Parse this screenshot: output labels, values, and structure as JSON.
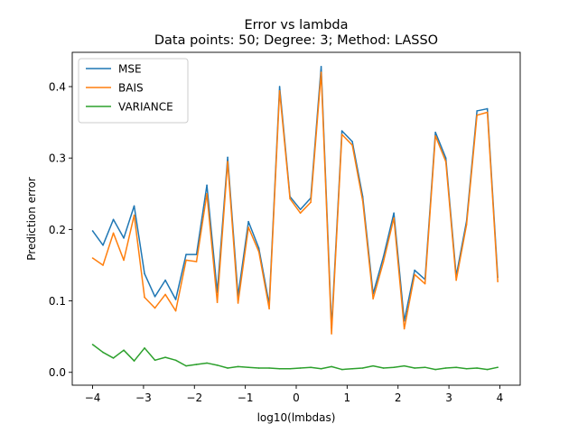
{
  "chart_data": {
    "type": "line",
    "title": "Error vs lambda",
    "subtitle": "Data points: 50; Degree: 3; Method: LASSO",
    "xlabel": "log10(lmbdas)",
    "ylabel": "Prediction error",
    "xlim": [
      -4.4,
      4.4
    ],
    "ylim": [
      -0.018,
      0.448
    ],
    "xticks": [
      -4,
      -3,
      -2,
      -1,
      0,
      1,
      2,
      3,
      4
    ],
    "yticks": [
      0.0,
      0.1,
      0.2,
      0.3,
      0.4
    ],
    "xtick_labels": [
      "−4",
      "−3",
      "−2",
      "−1",
      "0",
      "1",
      "2",
      "3",
      "4"
    ],
    "ytick_labels": [
      "0.0",
      "0.1",
      "0.2",
      "0.3",
      "0.4"
    ],
    "grid": false,
    "legend_position": "top-left",
    "x": [
      -4.0,
      -3.7959,
      -3.5918,
      -3.3878,
      -3.1837,
      -2.9796,
      -2.7755,
      -2.5714,
      -2.3673,
      -2.1633,
      -1.9592,
      -1.7551,
      -1.551,
      -1.3469,
      -1.1429,
      -0.9388,
      -0.7347,
      -0.5306,
      -0.3265,
      -0.1224,
      0.0816,
      0.2857,
      0.4898,
      0.6939,
      0.898,
      1.102,
      1.3061,
      1.5102,
      1.7143,
      1.9184,
      2.1224,
      2.3265,
      2.5306,
      2.7347,
      2.9388,
      3.1429,
      3.3469,
      3.551,
      3.7551,
      3.9592
    ],
    "series": [
      {
        "name": "MSE",
        "color": "#1f77b4",
        "values": [
          0.198,
          0.178,
          0.214,
          0.188,
          0.233,
          0.138,
          0.106,
          0.129,
          0.102,
          0.165,
          0.165,
          0.262,
          0.112,
          0.301,
          0.107,
          0.211,
          0.174,
          0.095,
          0.4,
          0.246,
          0.228,
          0.244,
          0.428,
          0.062,
          0.338,
          0.323,
          0.246,
          0.11,
          0.162,
          0.223,
          0.072,
          0.143,
          0.13,
          0.336,
          0.3,
          0.135,
          0.212,
          0.366,
          0.369,
          0.133
        ]
      },
      {
        "name": "BAIS",
        "color": "#ff7f0e",
        "values": [
          0.16,
          0.15,
          0.195,
          0.157,
          0.22,
          0.105,
          0.09,
          0.109,
          0.086,
          0.157,
          0.155,
          0.25,
          0.098,
          0.295,
          0.097,
          0.203,
          0.169,
          0.089,
          0.394,
          0.243,
          0.223,
          0.238,
          0.42,
          0.054,
          0.333,
          0.318,
          0.24,
          0.103,
          0.155,
          0.216,
          0.061,
          0.137,
          0.124,
          0.331,
          0.295,
          0.129,
          0.207,
          0.36,
          0.364,
          0.127
        ]
      },
      {
        "name": "VARIANCE",
        "color": "#2ca02c",
        "values": [
          0.039,
          0.028,
          0.02,
          0.031,
          0.016,
          0.034,
          0.017,
          0.021,
          0.017,
          0.009,
          0.011,
          0.013,
          0.01,
          0.006,
          0.008,
          0.007,
          0.006,
          0.006,
          0.005,
          0.005,
          0.006,
          0.007,
          0.005,
          0.008,
          0.004,
          0.005,
          0.006,
          0.009,
          0.006,
          0.007,
          0.009,
          0.006,
          0.007,
          0.004,
          0.006,
          0.007,
          0.005,
          0.006,
          0.004,
          0.007
        ]
      }
    ]
  }
}
